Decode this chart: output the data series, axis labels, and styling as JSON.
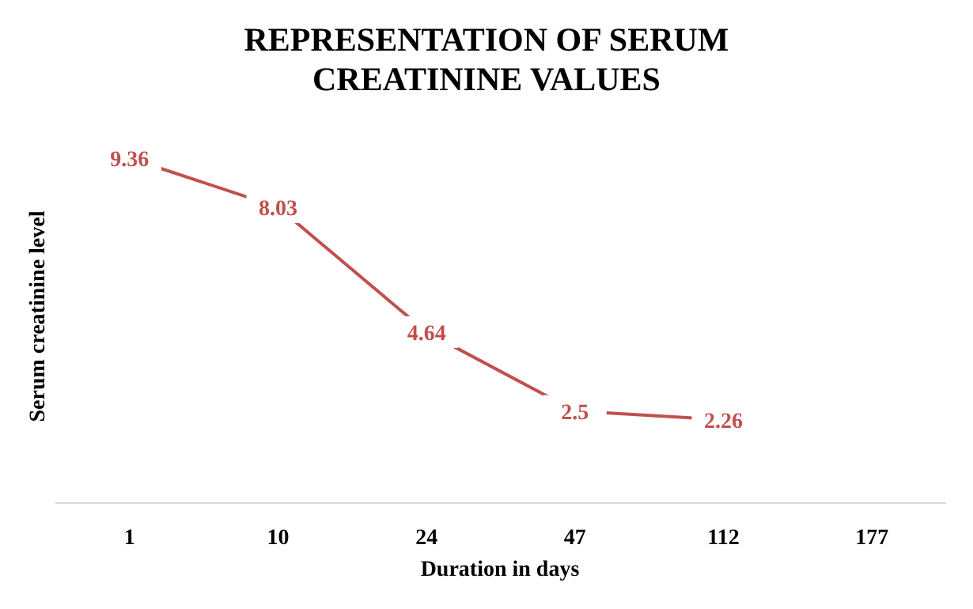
{
  "chart_data": {
    "type": "line",
    "title": "REPRESENTATION OF SERUM CREATININE VALUES",
    "xlabel": "Duration  in days",
    "ylabel": "Serum  creatinine  level",
    "categories": [
      "1",
      "10",
      "24",
      "47",
      "112",
      "177"
    ],
    "series": [
      {
        "color": "#c0504d",
        "values": [
          9.36,
          8.03,
          4.64,
          2.5,
          2.26,
          null
        ]
      }
    ],
    "data_labels": true
  }
}
